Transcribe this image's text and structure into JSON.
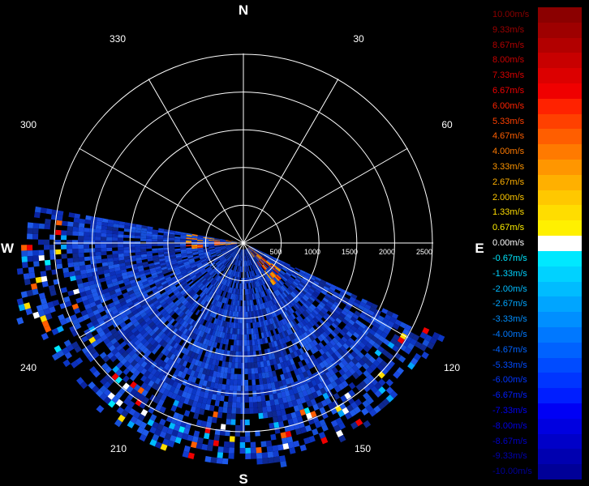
{
  "directions": {
    "north": "N",
    "east": "E",
    "south": "S",
    "west": "W"
  },
  "bearings": [
    "30",
    "60",
    "120",
    "150",
    "210",
    "240",
    "300",
    "330"
  ],
  "range_labels": [
    "500",
    "1000",
    "1500",
    "2000",
    "2500"
  ],
  "legend": {
    "entries": [
      {
        "label": "10.00m/s",
        "color": "#8b0000"
      },
      {
        "label": "9.33m/s",
        "color": "#9e0000"
      },
      {
        "label": "8.67m/s",
        "color": "#b20000"
      },
      {
        "label": "8.00m/s",
        "color": "#c80000"
      },
      {
        "label": "7.33m/s",
        "color": "#dc0000"
      },
      {
        "label": "6.67m/s",
        "color": "#f00000"
      },
      {
        "label": "6.00m/s",
        "color": "#ff2200"
      },
      {
        "label": "5.33m/s",
        "color": "#ff4000"
      },
      {
        "label": "4.67m/s",
        "color": "#ff5e00"
      },
      {
        "label": "4.00m/s",
        "color": "#ff7a00"
      },
      {
        "label": "3.33m/s",
        "color": "#ff9600"
      },
      {
        "label": "2.67m/s",
        "color": "#ffb000"
      },
      {
        "label": "2.00m/s",
        "color": "#ffc800"
      },
      {
        "label": "1.33m/s",
        "color": "#ffdd00"
      },
      {
        "label": "0.67m/s",
        "color": "#fff000"
      },
      {
        "label": "0.00m/s",
        "color": "#ffffff"
      },
      {
        "label": "-0.67m/s",
        "color": "#00e8ff"
      },
      {
        "label": "-1.33m/s",
        "color": "#00d2ff"
      },
      {
        "label": "-2.00m/s",
        "color": "#00bcff"
      },
      {
        "label": "-2.67m/s",
        "color": "#00a5ff"
      },
      {
        "label": "-3.33m/s",
        "color": "#008fff"
      },
      {
        "label": "-4.00m/s",
        "color": "#0078ff"
      },
      {
        "label": "-4.67m/s",
        "color": "#0062ff"
      },
      {
        "label": "-5.33m/s",
        "color": "#004bff"
      },
      {
        "label": "-6.00m/s",
        "color": "#0035ff"
      },
      {
        "label": "-6.67m/s",
        "color": "#001eff"
      },
      {
        "label": "-7.33m/s",
        "color": "#0000f5"
      },
      {
        "label": "-8.00m/s",
        "color": "#0000e0"
      },
      {
        "label": "-8.67m/s",
        "color": "#0000c8"
      },
      {
        "label": "-9.33m/s",
        "color": "#0000b0"
      },
      {
        "label": "-10.00m/s",
        "color": "#000098"
      }
    ]
  },
  "colors": {
    "background": "#000000",
    "grid": "#ffffff",
    "dominant_echo": "#1a3fd0",
    "approaching_echo": "#ff5e00"
  }
}
